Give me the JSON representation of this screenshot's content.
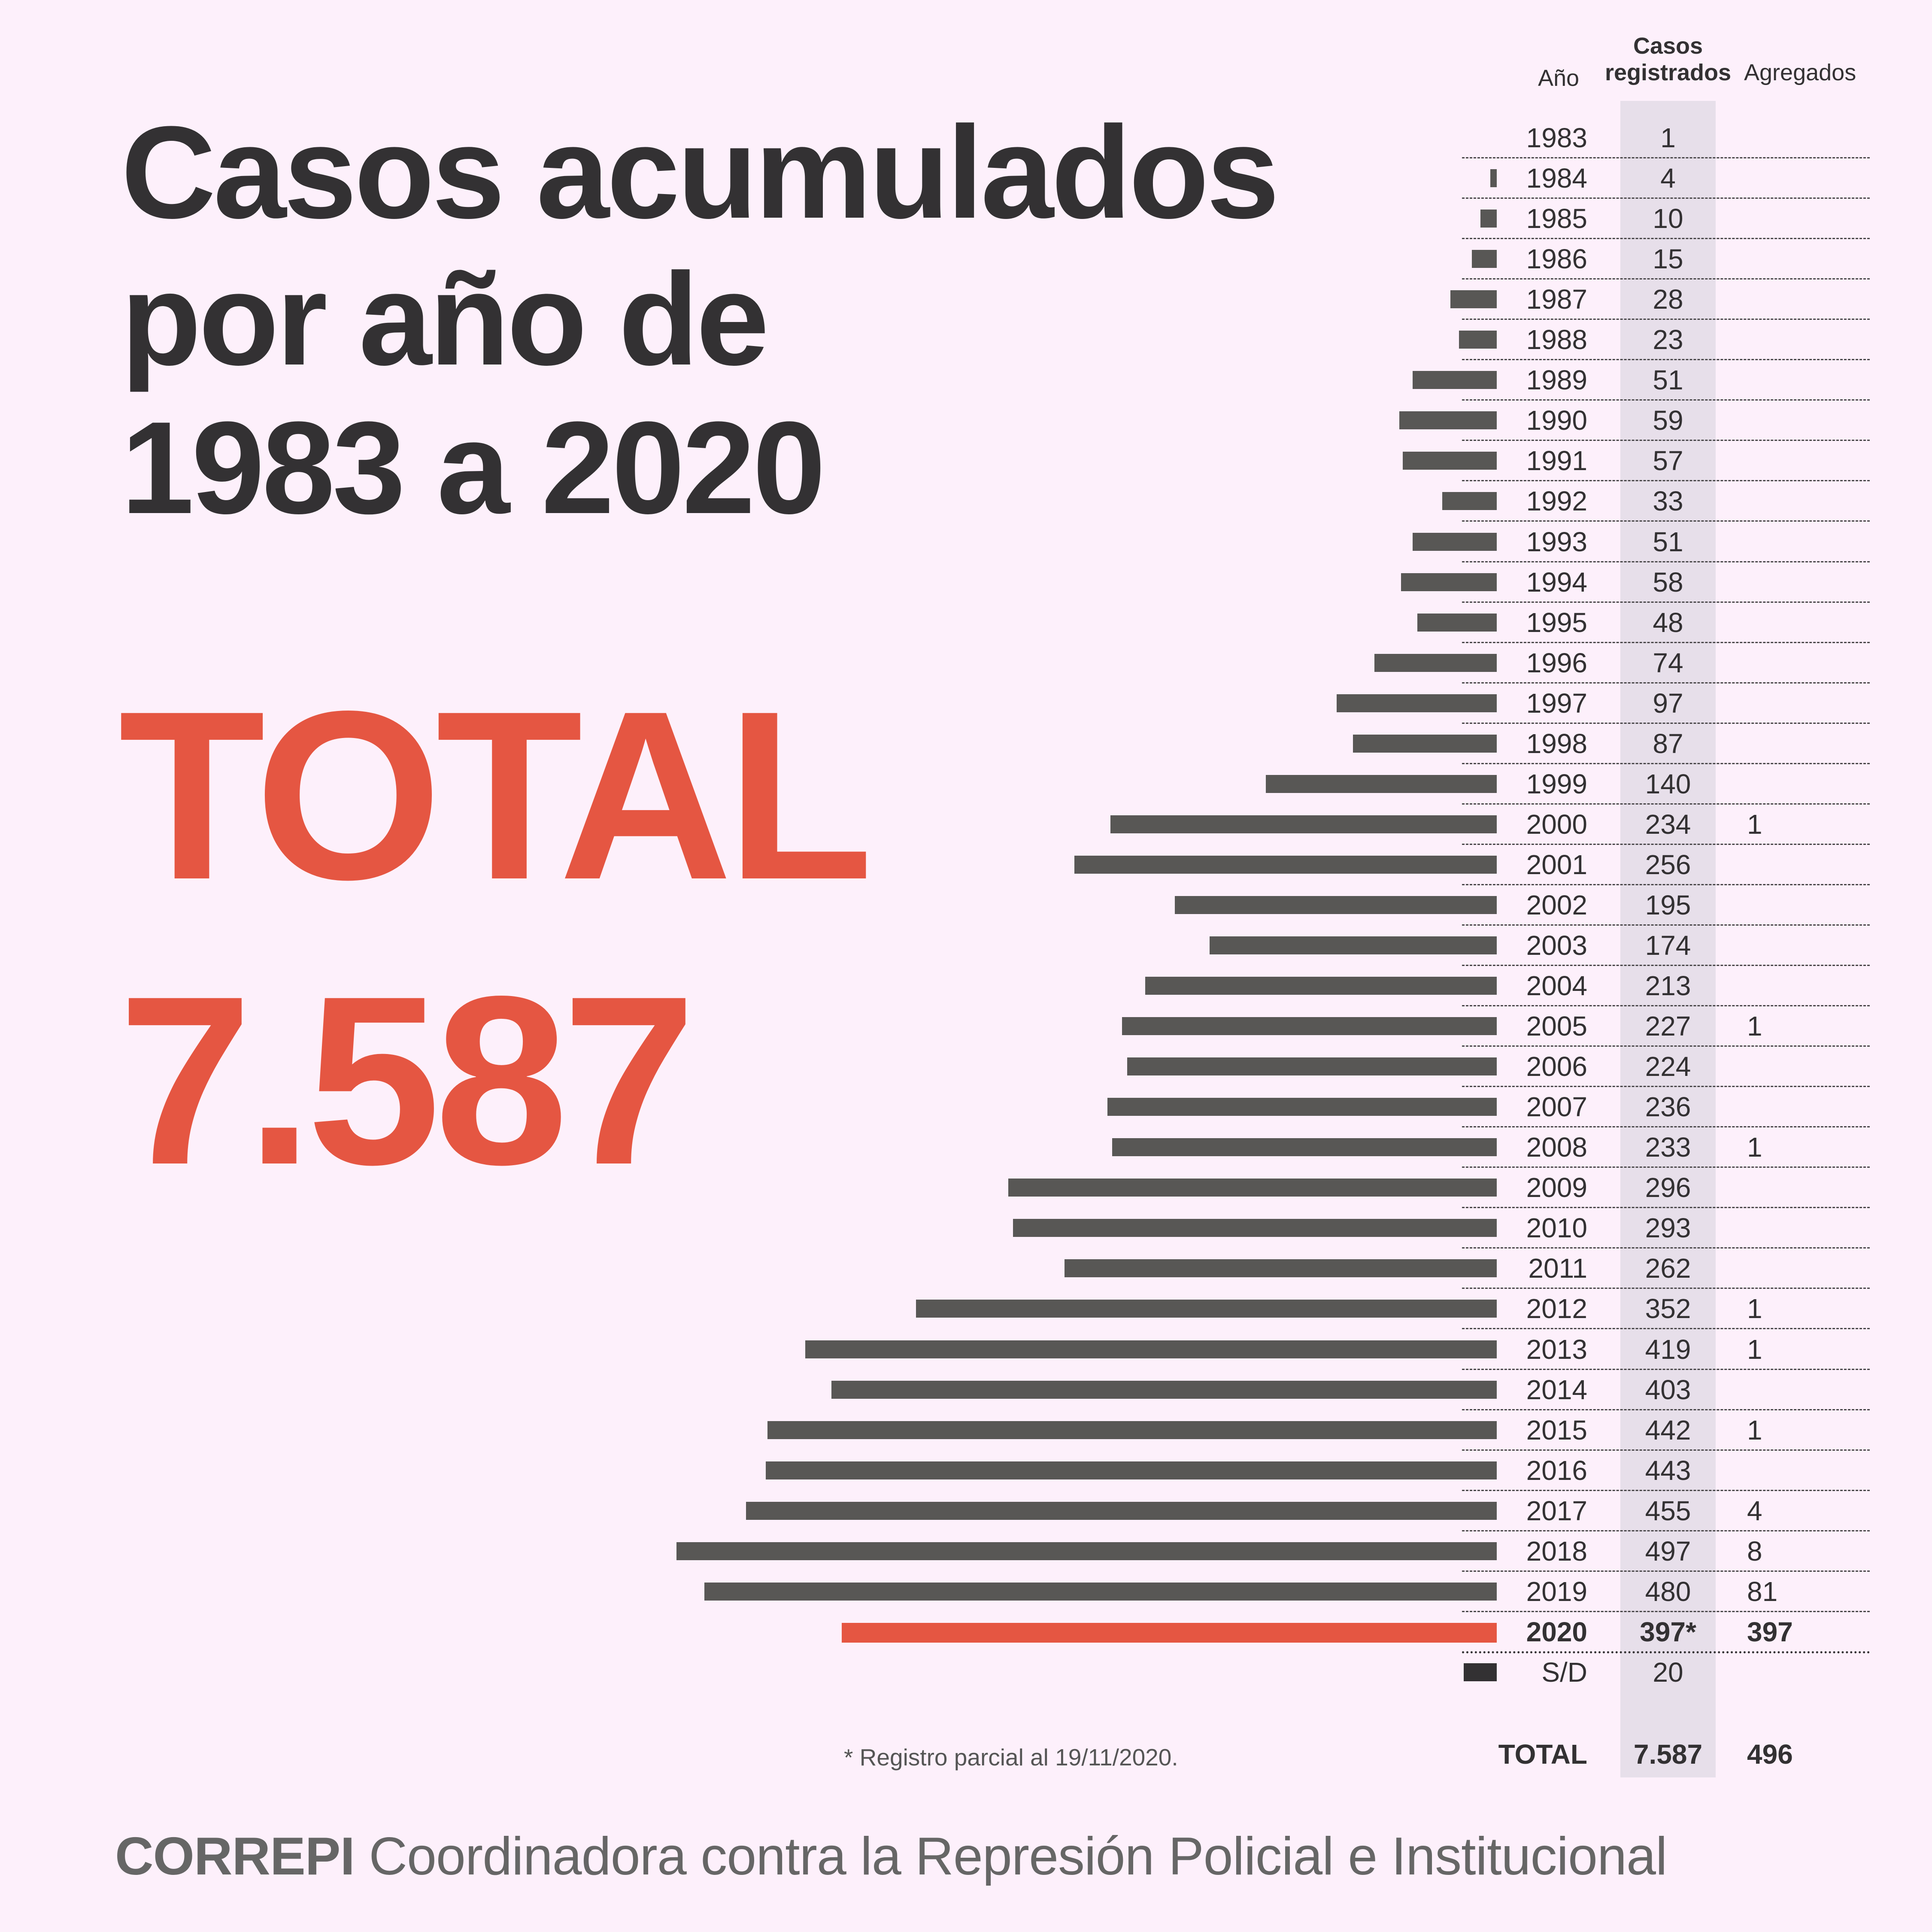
{
  "title": {
    "lines": [
      "Casos acumulados",
      "por año de",
      "1983 a 2020"
    ]
  },
  "highlight": {
    "label": "TOTAL",
    "value": "7.587"
  },
  "table": {
    "headers": {
      "year": "Año",
      "cases_line1": "Casos",
      "cases_line2": "registrados",
      "added": "Agregados"
    },
    "total_row": {
      "label": "TOTAL",
      "cases": "7.587",
      "added": "496"
    }
  },
  "footnote": "* Registro parcial al 19/11/2020.",
  "footer": {
    "brand": "CORREPI",
    "text": "Coordinadora contra la Represión Policial e Institucional"
  },
  "colors": {
    "background": "#fdf0fb",
    "bar": "#585755",
    "bar_highlight": "#e55642",
    "bar_unknown": "#333133",
    "column_highlight": "#e7dfea",
    "text": "#333133"
  },
  "chart_data": {
    "type": "bar",
    "orientation": "horizontal",
    "title": "Casos acumulados por año de 1983 a 2020",
    "xlabel": "",
    "ylabel": "Año",
    "highlight_category": "2020",
    "unknown_category": "S/D",
    "categories": [
      "1983",
      "1984",
      "1985",
      "1986",
      "1987",
      "1988",
      "1989",
      "1990",
      "1991",
      "1992",
      "1993",
      "1994",
      "1995",
      "1996",
      "1997",
      "1998",
      "1999",
      "2000",
      "2001",
      "2002",
      "2003",
      "2004",
      "2005",
      "2006",
      "2007",
      "2008",
      "2009",
      "2010",
      "2011",
      "2012",
      "2013",
      "2014",
      "2015",
      "2016",
      "2017",
      "2018",
      "2019",
      "2020",
      "S/D"
    ],
    "series": [
      {
        "name": "Casos registrados",
        "values": [
          1,
          4,
          10,
          15,
          28,
          23,
          51,
          59,
          57,
          33,
          51,
          58,
          48,
          74,
          97,
          87,
          140,
          234,
          256,
          195,
          174,
          213,
          227,
          224,
          236,
          233,
          296,
          293,
          262,
          352,
          419,
          403,
          442,
          443,
          455,
          497,
          480,
          397,
          20
        ],
        "labels": [
          "1",
          "4",
          "10",
          "15",
          "28",
          "23",
          "51",
          "59",
          "57",
          "33",
          "51",
          "58",
          "48",
          "74",
          "97",
          "87",
          "140",
          "234",
          "256",
          "195",
          "174",
          "213",
          "227",
          "224",
          "236",
          "233",
          "296",
          "293",
          "262",
          "352",
          "419",
          "403",
          "442",
          "443",
          "455",
          "497",
          "480",
          "397*",
          "20"
        ]
      },
      {
        "name": "Agregados",
        "values": [
          null,
          null,
          null,
          null,
          null,
          null,
          null,
          null,
          null,
          null,
          null,
          null,
          null,
          null,
          null,
          null,
          null,
          1,
          null,
          null,
          null,
          null,
          1,
          null,
          null,
          1,
          null,
          null,
          null,
          1,
          1,
          null,
          1,
          null,
          4,
          8,
          81,
          397,
          null
        ],
        "labels": [
          "",
          "",
          "",
          "",
          "",
          "",
          "",
          "",
          "",
          "",
          "",
          "",
          "",
          "",
          "",
          "",
          "",
          "1",
          "",
          "",
          "",
          "",
          "1",
          "",
          "",
          "1",
          "",
          "",
          "",
          "1",
          "1",
          "",
          "1",
          "",
          "4",
          "8",
          "81",
          "397",
          ""
        ]
      }
    ],
    "xlim": [
      0,
      497
    ],
    "grid": false,
    "legend": "none"
  }
}
